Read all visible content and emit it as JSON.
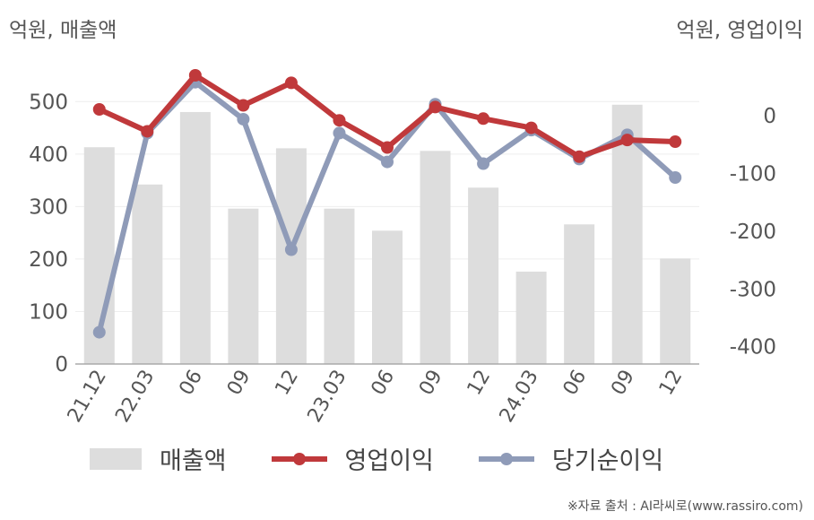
{
  "left_unit": "억원, 매출액",
  "right_unit": "억원, 영업이익",
  "source": "※자료 출처 : AI라씨로(www.rassiro.com)",
  "legend": [
    "매출액",
    "영업이익",
    "당기순이익"
  ],
  "colors": {
    "revenue": "#dddddd",
    "operating": "#c0393b",
    "net": "#8f9bb8",
    "grid": "#eeeeee",
    "axis": "#aaaaaa"
  },
  "chart_data": {
    "type": "bar",
    "categories": [
      "21.12",
      "22.03",
      "06",
      "09",
      "12",
      "23.03",
      "06",
      "09",
      "12",
      "24.03",
      "06",
      "09",
      "12"
    ],
    "series": [
      {
        "name": "매출액",
        "type": "bar",
        "axis": "left",
        "values": [
          413,
          342,
          480,
          296,
          411,
          296,
          254,
          406,
          336,
          176,
          266,
          494,
          201
        ]
      },
      {
        "name": "영업이익",
        "type": "line",
        "axis": "right",
        "values": [
          11,
          -27,
          70,
          18,
          57,
          -8,
          -55,
          15,
          -5,
          -21,
          -71,
          -42,
          -45
        ]
      },
      {
        "name": "당기순이익",
        "type": "line",
        "axis": "right",
        "values": [
          -375,
          -30,
          58,
          -6,
          -232,
          -30,
          -80,
          20,
          -83,
          -25,
          -75,
          -33,
          -107
        ]
      }
    ],
    "y_left": {
      "ylim": [
        0,
        550
      ],
      "ticks": [
        0,
        100,
        200,
        300,
        400,
        500
      ]
    },
    "y_right": {
      "ylim": [
        -430,
        70
      ],
      "ticks": [
        0,
        -100,
        -200,
        -300,
        -400
      ]
    },
    "grid": true,
    "legend_position": "bottom"
  }
}
